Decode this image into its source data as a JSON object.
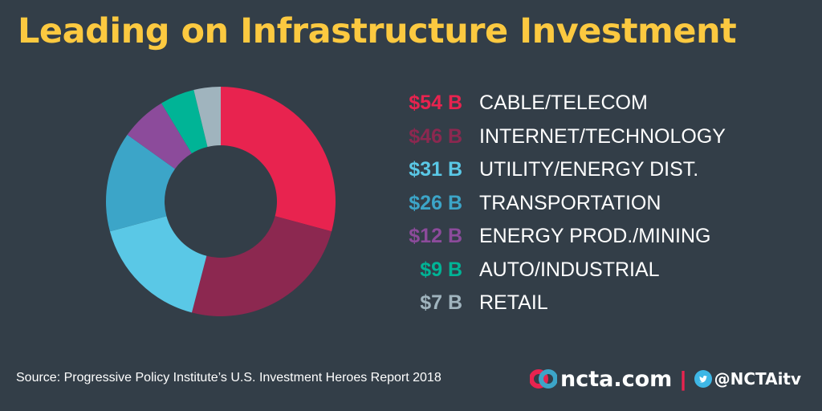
{
  "title": "Leading on Infrastructure Investment",
  "chart_data": {
    "type": "pie",
    "style": "donut",
    "title": "Leading on Infrastructure Investment",
    "categories": [
      "CABLE/TELECOM",
      "INTERNET/TECHNOLOGY",
      "UTILITY/ENERGY DIST.",
      "TRANSPORTATION",
      "ENERGY PROD./MINING",
      "AUTO/INDUSTRIAL",
      "RETAIL"
    ],
    "values": [
      54,
      46,
      31,
      26,
      12,
      9,
      7
    ],
    "value_labels": [
      "$54 B",
      "$46 B",
      "$31 B",
      "$26 B",
      "$12 B",
      "$9 B",
      "$7 B"
    ],
    "unit": "$ billions",
    "colors": [
      "#e8234f",
      "#8c2850",
      "#5ac8e6",
      "#3ca5c8",
      "#8c4b9b",
      "#00b496",
      "#a0b4be"
    ]
  },
  "source": "Source: Progressive Policy Institute’s U.S. Investment Heroes Report 2018",
  "footer": {
    "site": "ncta.com",
    "separator": "|",
    "handle": "@NCTAitv",
    "logo_icon": "ncta-logo-icon",
    "social_icon": "twitter-bird-icon",
    "accent_color": "#e8234f",
    "social_color": "#3eb7e6"
  },
  "colors": {
    "background": "#333e48",
    "title": "#fcc940",
    "text": "#ffffff"
  }
}
